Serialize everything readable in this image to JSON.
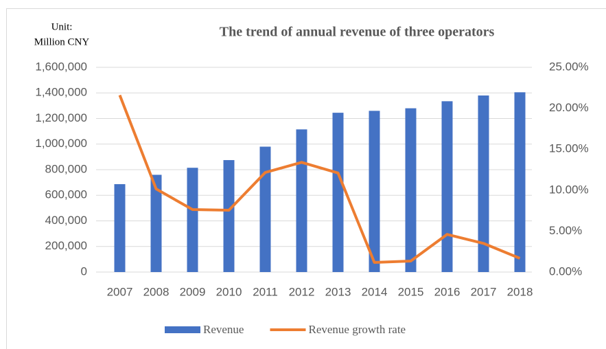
{
  "chart_data": {
    "type": "bar_line",
    "title": "The trend of annual revenue of  three operators",
    "annotations": [
      "Unit:",
      "Million CNY"
    ],
    "categories": [
      "2007",
      "2008",
      "2009",
      "2010",
      "2011",
      "2012",
      "2013",
      "2014",
      "2015",
      "2016",
      "2017",
      "2018"
    ],
    "series": [
      {
        "name": "Revenue",
        "type": "bar",
        "color": "#4472c4",
        "values": [
          687000,
          760000,
          815000,
          875000,
          980000,
          1115000,
          1245000,
          1260000,
          1280000,
          1335000,
          1380000,
          1405000
        ]
      },
      {
        "name": "Revenue growth rate",
        "type": "line",
        "axis": "y2",
        "color": "#ed7d31",
        "values": [
          21.6,
          10.15,
          7.63,
          7.55,
          12.16,
          13.4,
          12.1,
          1.17,
          1.34,
          4.6,
          3.5,
          1.68
        ]
      }
    ],
    "ylim": [
      0,
      1600000
    ],
    "yticks": [
      0,
      {
        "value": 200000,
        "label": "200,000"
      },
      {
        "value": 400000,
        "label": "400,000"
      },
      {
        "value": 600000,
        "label": "600,000"
      },
      {
        "value": 800000,
        "label": "800,000"
      },
      {
        "value": 1000000,
        "label": "1,000,000"
      },
      {
        "value": 1200000,
        "label": "1,200,000"
      },
      {
        "value": 1400000,
        "label": "1,400,000"
      },
      {
        "value": 1600000,
        "label": "1,600,000"
      }
    ],
    "y2lim": [
      0,
      25
    ],
    "y2ticks": [
      {
        "value": 0,
        "label": "0.00%"
      },
      {
        "value": 5,
        "label": "5.00%"
      },
      {
        "value": 10,
        "label": "10.00%"
      },
      {
        "value": 15,
        "label": "15.00%"
      },
      {
        "value": 20,
        "label": "20.00%"
      },
      {
        "value": 25,
        "label": "25.00%"
      }
    ],
    "grid": true,
    "legend": "bottom"
  }
}
